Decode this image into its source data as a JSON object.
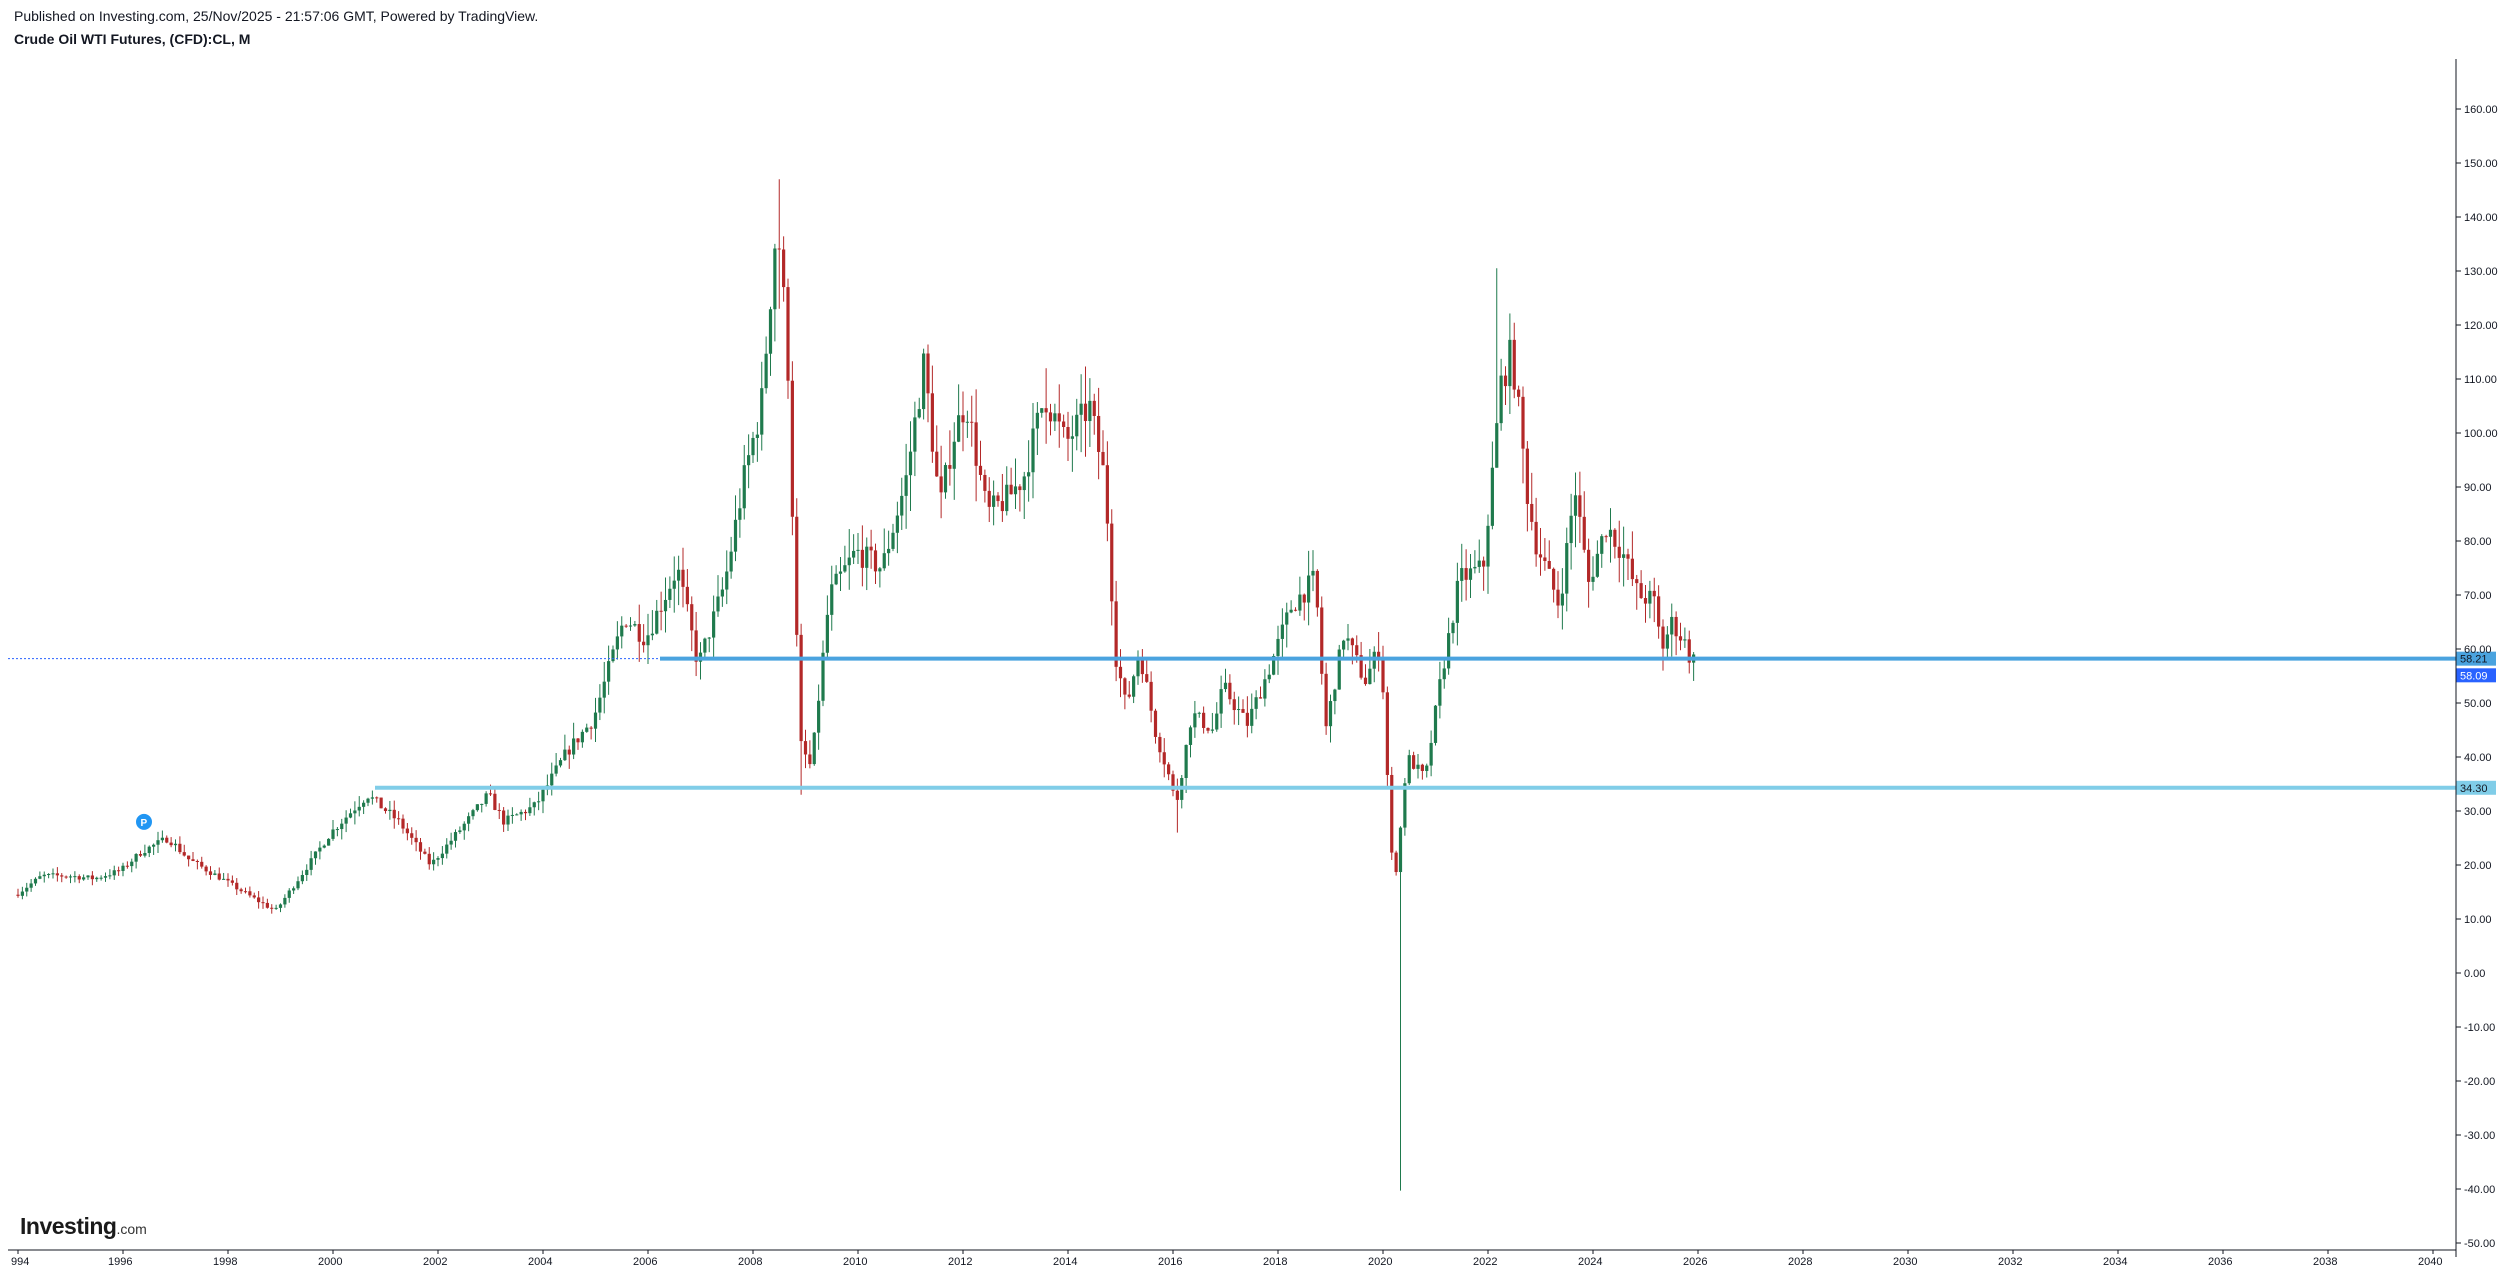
{
  "header": {
    "published": "Published on Investing.com, 25/Nov/2025 - 21:57:06 GMT, Powered by TradingView.",
    "title": "Crude Oil WTI Futures, (CFD):CL, M"
  },
  "logo": {
    "brand": "Investing",
    "suffix": ".com"
  },
  "marker": {
    "label": "P",
    "date": 1996.4,
    "value": 26.5,
    "color": "#2196f3"
  },
  "colors": {
    "up": "#1f7a4d",
    "down": "#b32828",
    "line_main": "#4aa3df",
    "line_support": "#80cde8",
    "current_price_bg": "#2962ff",
    "axis": "#131722",
    "grid_dotted": "#2962ff"
  },
  "chart_data": {
    "type": "candlestick",
    "title": "Crude Oil WTI Futures, (CFD):CL, M",
    "timeframe": "Monthly",
    "xlim": [
      1994,
      2040.3
    ],
    "ylim": [
      -50,
      170
    ],
    "x_ticks": [
      "994",
      "1996",
      "1998",
      "2000",
      "2002",
      "2004",
      "2006",
      "2008",
      "2010",
      "2012",
      "2014",
      "2016",
      "2018",
      "2020",
      "2022",
      "2024",
      "2026",
      "2028",
      "2030",
      "2032",
      "2034",
      "2036",
      "2038",
      "2040"
    ],
    "x_tick_values": [
      1994,
      1996,
      1998,
      2000,
      2002,
      2004,
      2006,
      2008,
      2010,
      2012,
      2014,
      2016,
      2018,
      2020,
      2022,
      2024,
      2026,
      2028,
      2030,
      2032,
      2034,
      2036,
      2038,
      2040
    ],
    "y_ticks": [
      "160.00",
      "150.00",
      "140.00",
      "130.00",
      "120.00",
      "110.00",
      "100.00",
      "90.00",
      "80.00",
      "70.00",
      "60.00",
      "50.00",
      "40.00",
      "30.00",
      "20.00",
      "10.00",
      "0.00",
      "-10.00",
      "-20.00",
      "-30.00",
      "-40.00",
      "-50.00"
    ],
    "y_tick_values": [
      160,
      150,
      140,
      130,
      120,
      110,
      100,
      90,
      80,
      70,
      60,
      50,
      40,
      30,
      20,
      10,
      0,
      -10,
      -20,
      -30,
      -40,
      -50
    ],
    "horizontal_lines": [
      {
        "value": 58.21,
        "label": "58.21",
        "style": "main"
      },
      {
        "value": 34.3,
        "label": "34.30",
        "style": "support"
      }
    ],
    "current_price": {
      "value": 58.09,
      "label": "58.09"
    },
    "price_path": [
      [
        1994.0,
        14.5
      ],
      [
        1994.5,
        18
      ],
      [
        1995.0,
        18
      ],
      [
        1995.5,
        17.5
      ],
      [
        1996.0,
        19
      ],
      [
        1996.4,
        22.5
      ],
      [
        1996.9,
        25
      ],
      [
        1997.3,
        21
      ],
      [
        1998.0,
        17
      ],
      [
        1998.5,
        14
      ],
      [
        1998.95,
        11.5
      ],
      [
        1999.5,
        19
      ],
      [
        2000.0,
        26
      ],
      [
        2000.7,
        33
      ],
      [
        2001.3,
        28
      ],
      [
        2001.9,
        20
      ],
      [
        2002.5,
        27
      ],
      [
        2003.0,
        33
      ],
      [
        2003.3,
        28
      ],
      [
        2003.9,
        31
      ],
      [
        2004.5,
        41
      ],
      [
        2005.0,
        47
      ],
      [
        2005.6,
        66
      ],
      [
        2006.0,
        62
      ],
      [
        2006.6,
        75
      ],
      [
        2007.0,
        57
      ],
      [
        2007.5,
        72
      ],
      [
        2007.9,
        93
      ],
      [
        2008.2,
        105
      ],
      [
        2008.5,
        140
      ],
      [
        2008.7,
        115
      ],
      [
        2008.85,
        68
      ],
      [
        2008.95,
        42
      ],
      [
        2009.15,
        38
      ],
      [
        2009.5,
        70
      ],
      [
        2010.0,
        78
      ],
      [
        2010.5,
        75
      ],
      [
        2010.95,
        91
      ],
      [
        2011.3,
        113
      ],
      [
        2011.6,
        86
      ],
      [
        2011.85,
        99
      ],
      [
        2012.1,
        106
      ],
      [
        2012.5,
        85
      ],
      [
        2012.9,
        88
      ],
      [
        2013.2,
        92
      ],
      [
        2013.6,
        107
      ],
      [
        2014.0,
        98
      ],
      [
        2014.45,
        105
      ],
      [
        2014.75,
        91
      ],
      [
        2014.95,
        59
      ],
      [
        2015.15,
        49
      ],
      [
        2015.4,
        60
      ],
      [
        2015.7,
        45
      ],
      [
        2015.95,
        37
      ],
      [
        2016.1,
        31
      ],
      [
        2016.4,
        48
      ],
      [
        2016.8,
        45
      ],
      [
        2017.0,
        53
      ],
      [
        2017.45,
        46
      ],
      [
        2017.9,
        57
      ],
      [
        2018.3,
        68
      ],
      [
        2018.75,
        73
      ],
      [
        2018.95,
        45
      ],
      [
        2019.3,
        63
      ],
      [
        2019.7,
        54
      ],
      [
        2020.0,
        61
      ],
      [
        2020.2,
        22
      ],
      [
        2020.3,
        19
      ],
      [
        2020.5,
        40
      ],
      [
        2020.85,
        36
      ],
      [
        2021.1,
        52
      ],
      [
        2021.5,
        73
      ],
      [
        2021.95,
        75
      ],
      [
        2022.3,
        110
      ],
      [
        2022.5,
        115
      ],
      [
        2022.8,
        88
      ],
      [
        2022.95,
        80
      ],
      [
        2023.4,
        68
      ],
      [
        2023.7,
        90
      ],
      [
        2023.95,
        72
      ],
      [
        2024.3,
        83
      ],
      [
        2024.6,
        78
      ],
      [
        2024.9,
        70
      ],
      [
        2025.2,
        69
      ],
      [
        2025.35,
        60
      ],
      [
        2025.55,
        65
      ],
      [
        2025.8,
        61
      ],
      [
        2025.9,
        58.1
      ]
    ],
    "spikes": [
      {
        "date": 2008.5,
        "high": 147,
        "low": 123
      },
      {
        "date": 2008.95,
        "high": 44,
        "low": 33
      },
      {
        "date": 2011.3,
        "high": 114.8,
        "low": 102
      },
      {
        "date": 2013.6,
        "high": 112,
        "low": 98
      },
      {
        "date": 2016.05,
        "high": 36,
        "low": 26
      },
      {
        "date": 2020.3,
        "high": 20,
        "low": -40.3
      },
      {
        "date": 2022.2,
        "high": 130.5,
        "low": 95
      },
      {
        "date": 2025.35,
        "high": 65,
        "low": 56
      }
    ]
  }
}
